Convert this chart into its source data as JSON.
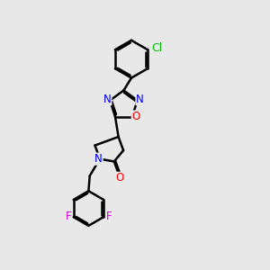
{
  "background_color": "#e8e8e8",
  "bond_color": "#000000",
  "bond_width": 1.8,
  "atom_colors": {
    "N": "#0000ff",
    "O": "#ff0000",
    "Cl": "#00bb00",
    "F": "#cc00cc"
  },
  "font_size": 8.5,
  "xlim": [
    2.0,
    8.5
  ],
  "ylim": [
    0.5,
    11.5
  ]
}
